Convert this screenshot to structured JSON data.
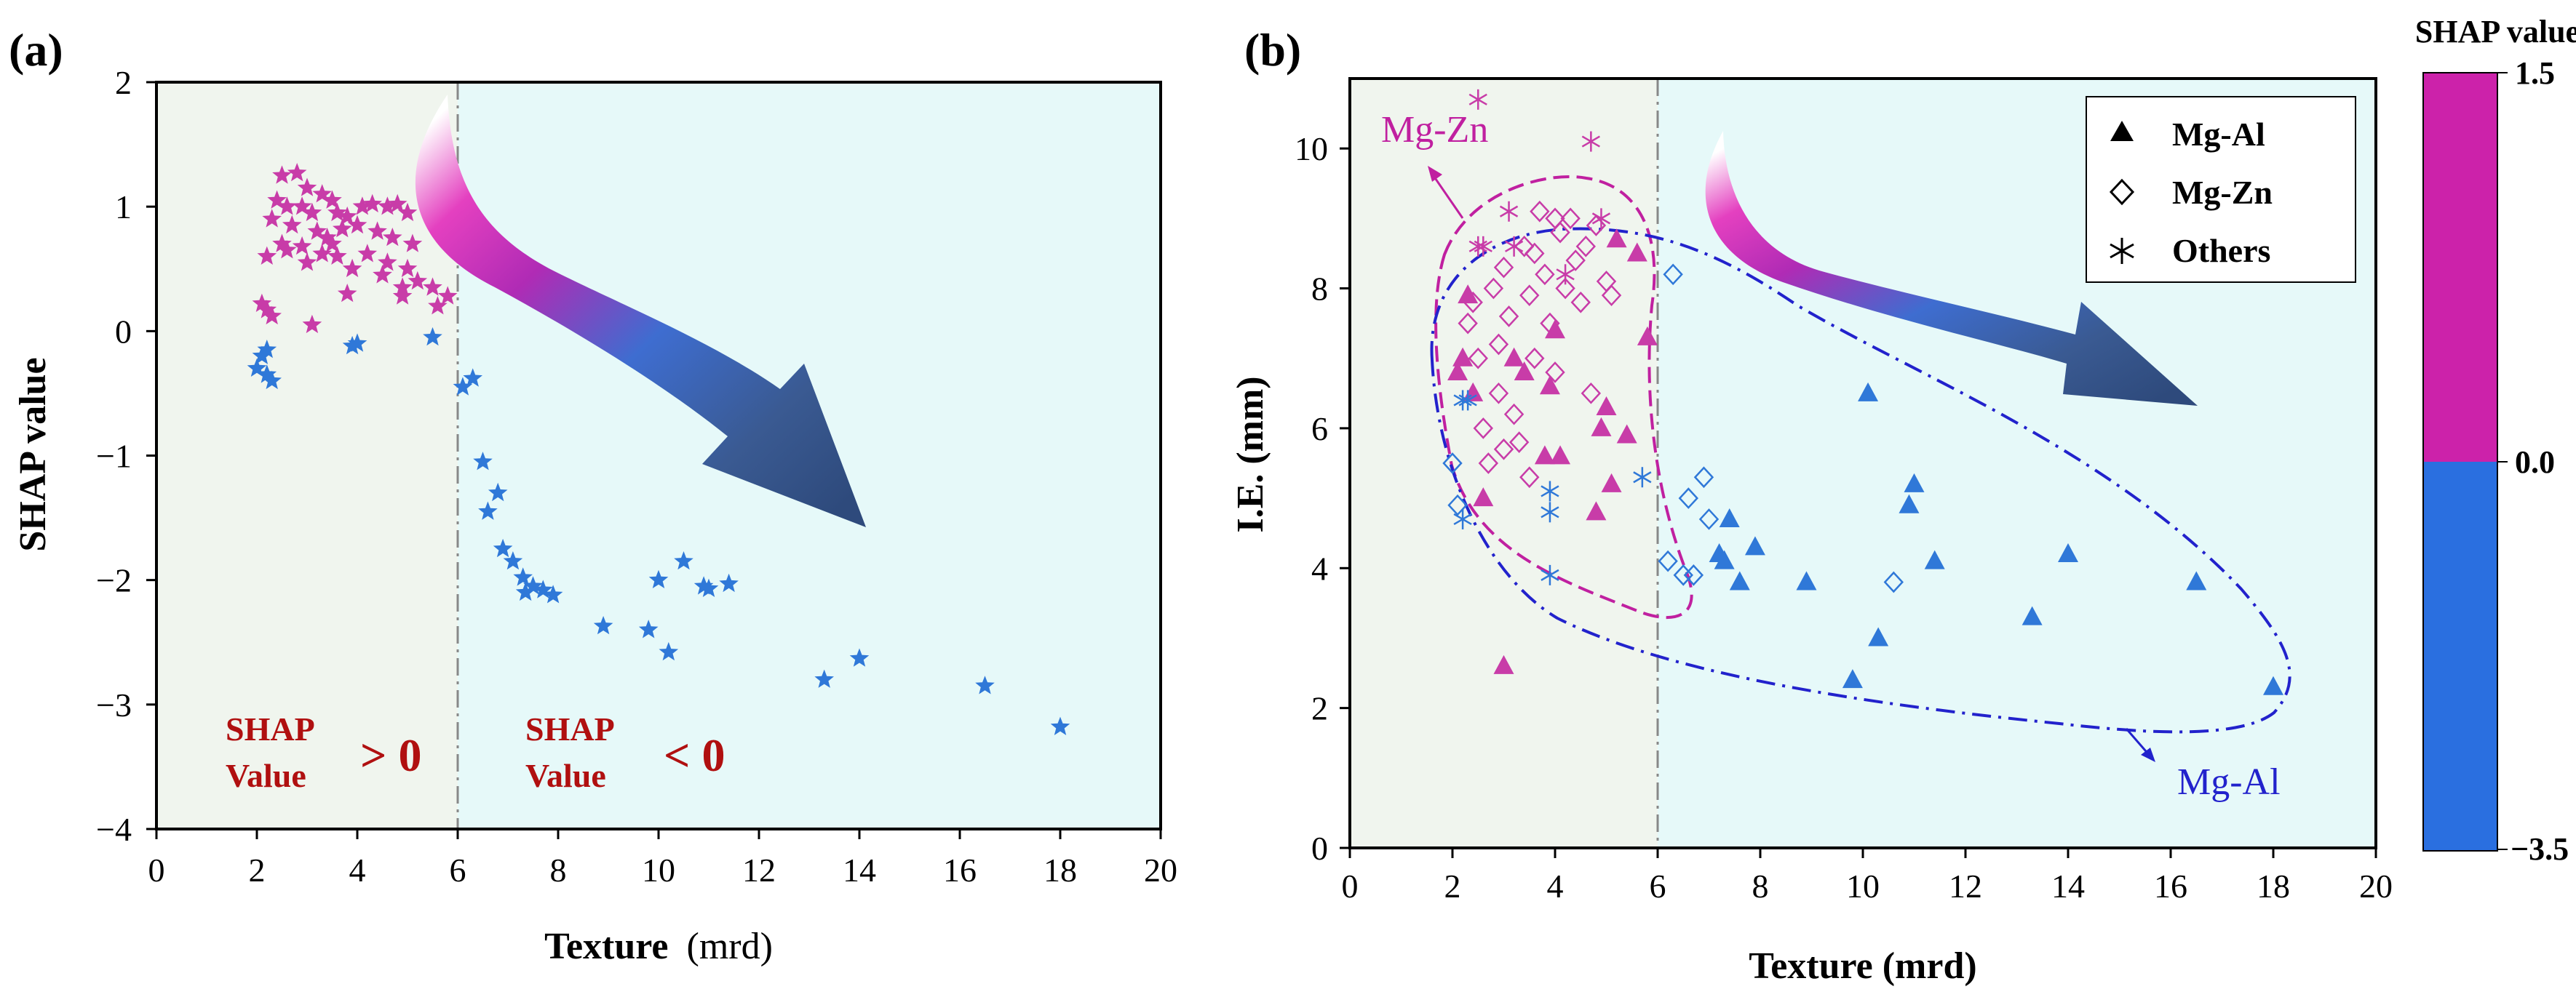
{
  "colors": {
    "pink": "#c83ca8",
    "blue": "#2f78d8",
    "pink_dark": "#c020a0",
    "blue_dark": "#2222cc",
    "text_red": "#b01010",
    "bgLeft": "#f0f5ee",
    "bgRight": "#e6f9f9",
    "arrow_dark": "#35507e",
    "cb_pink": "#cc22aa",
    "cb_blue": "#2a6fe0",
    "divider": "#888888"
  },
  "chart_data": [
    {
      "id": "a",
      "type": "scatter",
      "panel_label": "(a)",
      "xlabel_bold": "Texture",
      "xlabel_unit": "(mrd)",
      "ylabel": "SHAP value",
      "xlim": [
        0,
        20
      ],
      "ylim": [
        -4,
        2
      ],
      "xticks": [
        "0",
        "2",
        "4",
        "6",
        "8",
        "10",
        "12",
        "14",
        "16",
        "18",
        "20"
      ],
      "yticks": [
        "−4",
        "−3",
        "−2",
        "−1",
        "0",
        "1",
        "2"
      ],
      "divider_x": 6,
      "annotations": [
        {
          "line1": "SHAP",
          "line2": "Value",
          "sign": "> 0"
        },
        {
          "line1": "SHAP",
          "line2": "Value",
          "sign": "< 0"
        }
      ],
      "series": [
        {
          "name": "positive",
          "marker": "star",
          "points": [
            [
              2.5,
              1.25
            ],
            [
              2.8,
              1.27
            ],
            [
              3.0,
              1.15
            ],
            [
              3.3,
              1.1
            ],
            [
              3.5,
              1.05
            ],
            [
              2.4,
              1.05
            ],
            [
              2.6,
              1.0
            ],
            [
              2.9,
              1.0
            ],
            [
              3.1,
              0.95
            ],
            [
              3.6,
              0.95
            ],
            [
              3.8,
              0.92
            ],
            [
              4.1,
              1.0
            ],
            [
              4.3,
              1.02
            ],
            [
              4.6,
              1.0
            ],
            [
              4.8,
              1.02
            ],
            [
              5.0,
              0.95
            ],
            [
              2.3,
              0.9
            ],
            [
              2.7,
              0.85
            ],
            [
              3.2,
              0.8
            ],
            [
              3.4,
              0.75
            ],
            [
              3.7,
              0.82
            ],
            [
              4.0,
              0.85
            ],
            [
              4.4,
              0.8
            ],
            [
              4.7,
              0.75
            ],
            [
              5.1,
              0.7
            ],
            [
              2.5,
              0.7
            ],
            [
              2.9,
              0.68
            ],
            [
              3.3,
              0.62
            ],
            [
              3.6,
              0.6
            ],
            [
              4.2,
              0.62
            ],
            [
              4.6,
              0.55
            ],
            [
              5.0,
              0.5
            ],
            [
              2.2,
              0.6
            ],
            [
              3.0,
              0.55
            ],
            [
              3.9,
              0.5
            ],
            [
              4.5,
              0.45
            ],
            [
              5.2,
              0.4
            ],
            [
              5.5,
              0.35
            ],
            [
              5.8,
              0.28
            ],
            [
              5.6,
              0.2
            ],
            [
              3.8,
              0.3
            ],
            [
              4.9,
              0.35
            ],
            [
              2.1,
              0.22
            ],
            [
              2.2,
              0.17
            ],
            [
              2.3,
              0.12
            ],
            [
              3.1,
              0.05
            ],
            [
              2.6,
              0.65
            ],
            [
              3.5,
              0.7
            ],
            [
              4.9,
              0.28
            ]
          ]
        },
        {
          "name": "negative",
          "marker": "star",
          "points": [
            [
              2.0,
              -0.3
            ],
            [
              2.1,
              -0.2
            ],
            [
              2.2,
              -0.15
            ],
            [
              2.3,
              -0.4
            ],
            [
              2.2,
              -0.35
            ],
            [
              3.9,
              -0.12
            ],
            [
              4.0,
              -0.1
            ],
            [
              5.5,
              -0.05
            ],
            [
              6.1,
              -0.45
            ],
            [
              6.3,
              -0.38
            ],
            [
              6.5,
              -1.05
            ],
            [
              6.6,
              -1.45
            ],
            [
              6.8,
              -1.3
            ],
            [
              6.9,
              -1.75
            ],
            [
              7.1,
              -1.85
            ],
            [
              7.3,
              -1.98
            ],
            [
              7.35,
              -2.1
            ],
            [
              7.5,
              -2.05
            ],
            [
              7.7,
              -2.08
            ],
            [
              7.9,
              -2.12
            ],
            [
              8.9,
              -2.37
            ],
            [
              9.8,
              -2.4
            ],
            [
              10.0,
              -2.0
            ],
            [
              10.2,
              -2.58
            ],
            [
              10.5,
              -1.85
            ],
            [
              10.9,
              -2.05
            ],
            [
              11.0,
              -2.07
            ],
            [
              11.4,
              -2.03
            ],
            [
              13.3,
              -2.8
            ],
            [
              14.0,
              -2.63
            ],
            [
              16.5,
              -2.85
            ],
            [
              18.0,
              -3.18
            ]
          ]
        }
      ]
    },
    {
      "id": "b",
      "type": "scatter",
      "panel_label": "(b)",
      "xlabel": "Texture (mrd)",
      "ylabel": "I.E. (mm)",
      "xlim": [
        0,
        20
      ],
      "ylim": [
        0,
        11
      ],
      "xticks": [
        "0",
        "2",
        "4",
        "6",
        "8",
        "10",
        "12",
        "14",
        "16",
        "18",
        "20"
      ],
      "yticks": [
        "0",
        "2",
        "4",
        "6",
        "8",
        "10"
      ],
      "divider_x": 6,
      "legend_position": "top-right",
      "legend": [
        "Mg-Al",
        "Mg-Zn",
        "Others"
      ],
      "region_labels": [
        "Mg-Zn",
        "Mg-Al"
      ],
      "colorbar": {
        "title": "SHAP value",
        "ticks": [
          "1.5",
          "0.0",
          "−3.5"
        ],
        "range": [
          -3.5,
          1.5
        ]
      },
      "series": [
        {
          "name": "Mg-Al",
          "marker": "triangle",
          "points": [
            [
              2.1,
              6.8,
              "p"
            ],
            [
              2.2,
              7.0,
              "p"
            ],
            [
              2.3,
              7.9,
              "p"
            ],
            [
              2.4,
              6.5,
              "p"
            ],
            [
              2.6,
              5.0,
              "p"
            ],
            [
              3.0,
              2.6,
              "p"
            ],
            [
              3.2,
              7.0,
              "p"
            ],
            [
              3.4,
              6.8,
              "p"
            ],
            [
              3.8,
              5.6,
              "p"
            ],
            [
              3.9,
              6.6,
              "p"
            ],
            [
              4.0,
              7.4,
              "p"
            ],
            [
              4.1,
              5.6,
              "p"
            ],
            [
              4.8,
              4.8,
              "p"
            ],
            [
              4.9,
              6.0,
              "p"
            ],
            [
              5.0,
              6.3,
              "p"
            ],
            [
              5.1,
              5.2,
              "p"
            ],
            [
              5.2,
              8.7,
              "p"
            ],
            [
              5.4,
              5.9,
              "p"
            ],
            [
              5.6,
              8.5,
              "p"
            ],
            [
              5.8,
              7.3,
              "p"
            ],
            [
              7.3,
              4.1,
              "b"
            ],
            [
              7.4,
              4.7,
              "b"
            ],
            [
              7.6,
              3.8,
              "b"
            ],
            [
              7.9,
              4.3,
              "b"
            ],
            [
              8.9,
              3.8,
              "b"
            ],
            [
              9.8,
              2.4,
              "b"
            ],
            [
              10.1,
              6.5,
              "b"
            ],
            [
              10.3,
              3.0,
              "b"
            ],
            [
              10.9,
              4.9,
              "b"
            ],
            [
              11.0,
              5.2,
              "b"
            ],
            [
              11.4,
              4.1,
              "b"
            ],
            [
              13.3,
              3.3,
              "b"
            ],
            [
              14.0,
              4.2,
              "b"
            ],
            [
              16.5,
              3.8,
              "b"
            ],
            [
              18.0,
              2.3,
              "b"
            ],
            [
              7.2,
              4.2,
              "b"
            ]
          ]
        },
        {
          "name": "Mg-Zn",
          "marker": "diamond",
          "points": [
            [
              2.3,
              7.5,
              "p"
            ],
            [
              2.4,
              7.8,
              "p"
            ],
            [
              2.5,
              7.0,
              "p"
            ],
            [
              2.6,
              6.0,
              "p"
            ],
            [
              2.7,
              5.5,
              "p"
            ],
            [
              2.8,
              8.0,
              "p"
            ],
            [
              2.9,
              7.2,
              "p"
            ],
            [
              3.0,
              8.3,
              "p"
            ],
            [
              3.1,
              7.6,
              "p"
            ],
            [
              3.2,
              6.2,
              "p"
            ],
            [
              3.3,
              5.8,
              "p"
            ],
            [
              3.4,
              8.6,
              "p"
            ],
            [
              3.5,
              7.9,
              "p"
            ],
            [
              3.6,
              7.0,
              "p"
            ],
            [
              3.7,
              9.1,
              "p"
            ],
            [
              3.8,
              8.2,
              "p"
            ],
            [
              3.9,
              7.5,
              "p"
            ],
            [
              4.0,
              6.8,
              "p"
            ],
            [
              4.1,
              8.8,
              "p"
            ],
            [
              4.2,
              8.0,
              "p"
            ],
            [
              4.3,
              9.0,
              "p"
            ],
            [
              4.4,
              8.4,
              "p"
            ],
            [
              4.5,
              7.8,
              "p"
            ],
            [
              4.6,
              8.6,
              "p"
            ],
            [
              4.7,
              6.5,
              "p"
            ],
            [
              4.8,
              8.9,
              "p"
            ],
            [
              5.0,
              8.1,
              "p"
            ],
            [
              5.1,
              7.9,
              "p"
            ],
            [
              3.0,
              5.7,
              "p"
            ],
            [
              3.5,
              5.3,
              "p"
            ],
            [
              2.9,
              6.5,
              "p"
            ],
            [
              3.6,
              8.5,
              "p"
            ],
            [
              4.0,
              9.0,
              "p"
            ],
            [
              2.0,
              5.5,
              "b"
            ],
            [
              2.1,
              4.9,
              "b"
            ],
            [
              6.3,
              8.2,
              "b"
            ],
            [
              6.2,
              4.1,
              "b"
            ],
            [
              6.5,
              3.9,
              "b"
            ],
            [
              6.7,
              3.9,
              "b"
            ],
            [
              6.6,
              5.0,
              "b"
            ],
            [
              6.9,
              5.3,
              "b"
            ],
            [
              7.0,
              4.7,
              "b"
            ],
            [
              10.6,
              3.8,
              "b"
            ]
          ]
        },
        {
          "name": "Others",
          "marker": "asterisk",
          "points": [
            [
              2.5,
              10.7,
              "p"
            ],
            [
              4.7,
              10.1,
              "p"
            ],
            [
              2.5,
              8.6,
              "p"
            ],
            [
              2.6,
              8.6,
              "p"
            ],
            [
              3.1,
              9.1,
              "p"
            ],
            [
              3.2,
              8.6,
              "p"
            ],
            [
              4.2,
              8.2,
              "p"
            ],
            [
              4.9,
              9.0,
              "p"
            ],
            [
              2.2,
              6.4,
              "b"
            ],
            [
              2.3,
              6.4,
              "b"
            ],
            [
              2.2,
              4.7,
              "b"
            ],
            [
              3.9,
              5.1,
              "b"
            ],
            [
              3.9,
              4.8,
              "b"
            ],
            [
              3.9,
              3.9,
              "b"
            ],
            [
              5.7,
              5.3,
              "b"
            ]
          ]
        }
      ]
    }
  ]
}
